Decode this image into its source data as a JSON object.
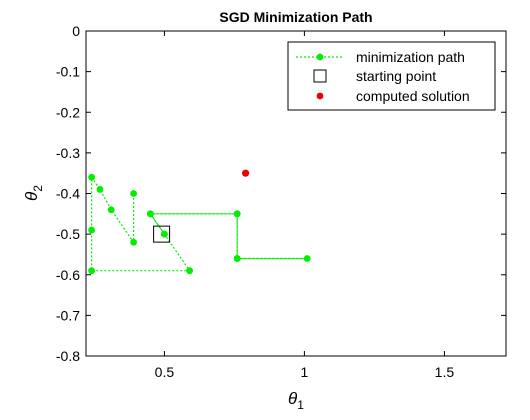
{
  "chart_data": {
    "type": "scatter",
    "title": "SGD Minimization Path",
    "xlabel": "θ",
    "xlabel_sub": "1",
    "ylabel": "θ",
    "ylabel_sub": "2",
    "xlim": [
      0.22,
      1.72
    ],
    "ylim": [
      -0.8,
      0
    ],
    "xticks": [
      0.5,
      1,
      1.5
    ],
    "xtick_labels": [
      "0.5",
      "1",
      "1.5"
    ],
    "yticks": [
      0,
      -0.1,
      -0.2,
      -0.3,
      -0.4,
      -0.5,
      -0.6,
      -0.7,
      -0.8
    ],
    "ytick_labels": [
      "0",
      "-0.1",
      "-0.2",
      "-0.3",
      "-0.4",
      "-0.5",
      "-0.6",
      "-0.7",
      "-0.8"
    ],
    "grid": false,
    "legend_position": "top-right",
    "series": [
      {
        "name": "minimization path",
        "style": "dotted-line-with-markers",
        "color": "#00ee00",
        "x": [
          0.5,
          0.45,
          0.76,
          0.76,
          1.01,
          0.76,
          0.76,
          0.45,
          0.5,
          0.59,
          0.24,
          0.24,
          0.24,
          0.27,
          0.31,
          0.39,
          0.39
        ],
        "y": [
          -0.5,
          -0.45,
          -0.45,
          -0.56,
          -0.56,
          -0.56,
          -0.45,
          -0.45,
          -0.5,
          -0.59,
          -0.59,
          -0.49,
          -0.36,
          -0.39,
          -0.44,
          -0.52,
          -0.4
        ]
      },
      {
        "name": "starting point",
        "style": "hollow-square",
        "color": "#000000",
        "x": [
          0.49
        ],
        "y": [
          -0.5
        ]
      },
      {
        "name": "computed solution",
        "style": "filled-circle",
        "color": "#ee0000",
        "x": [
          0.79
        ],
        "y": [
          -0.35
        ]
      }
    ]
  }
}
